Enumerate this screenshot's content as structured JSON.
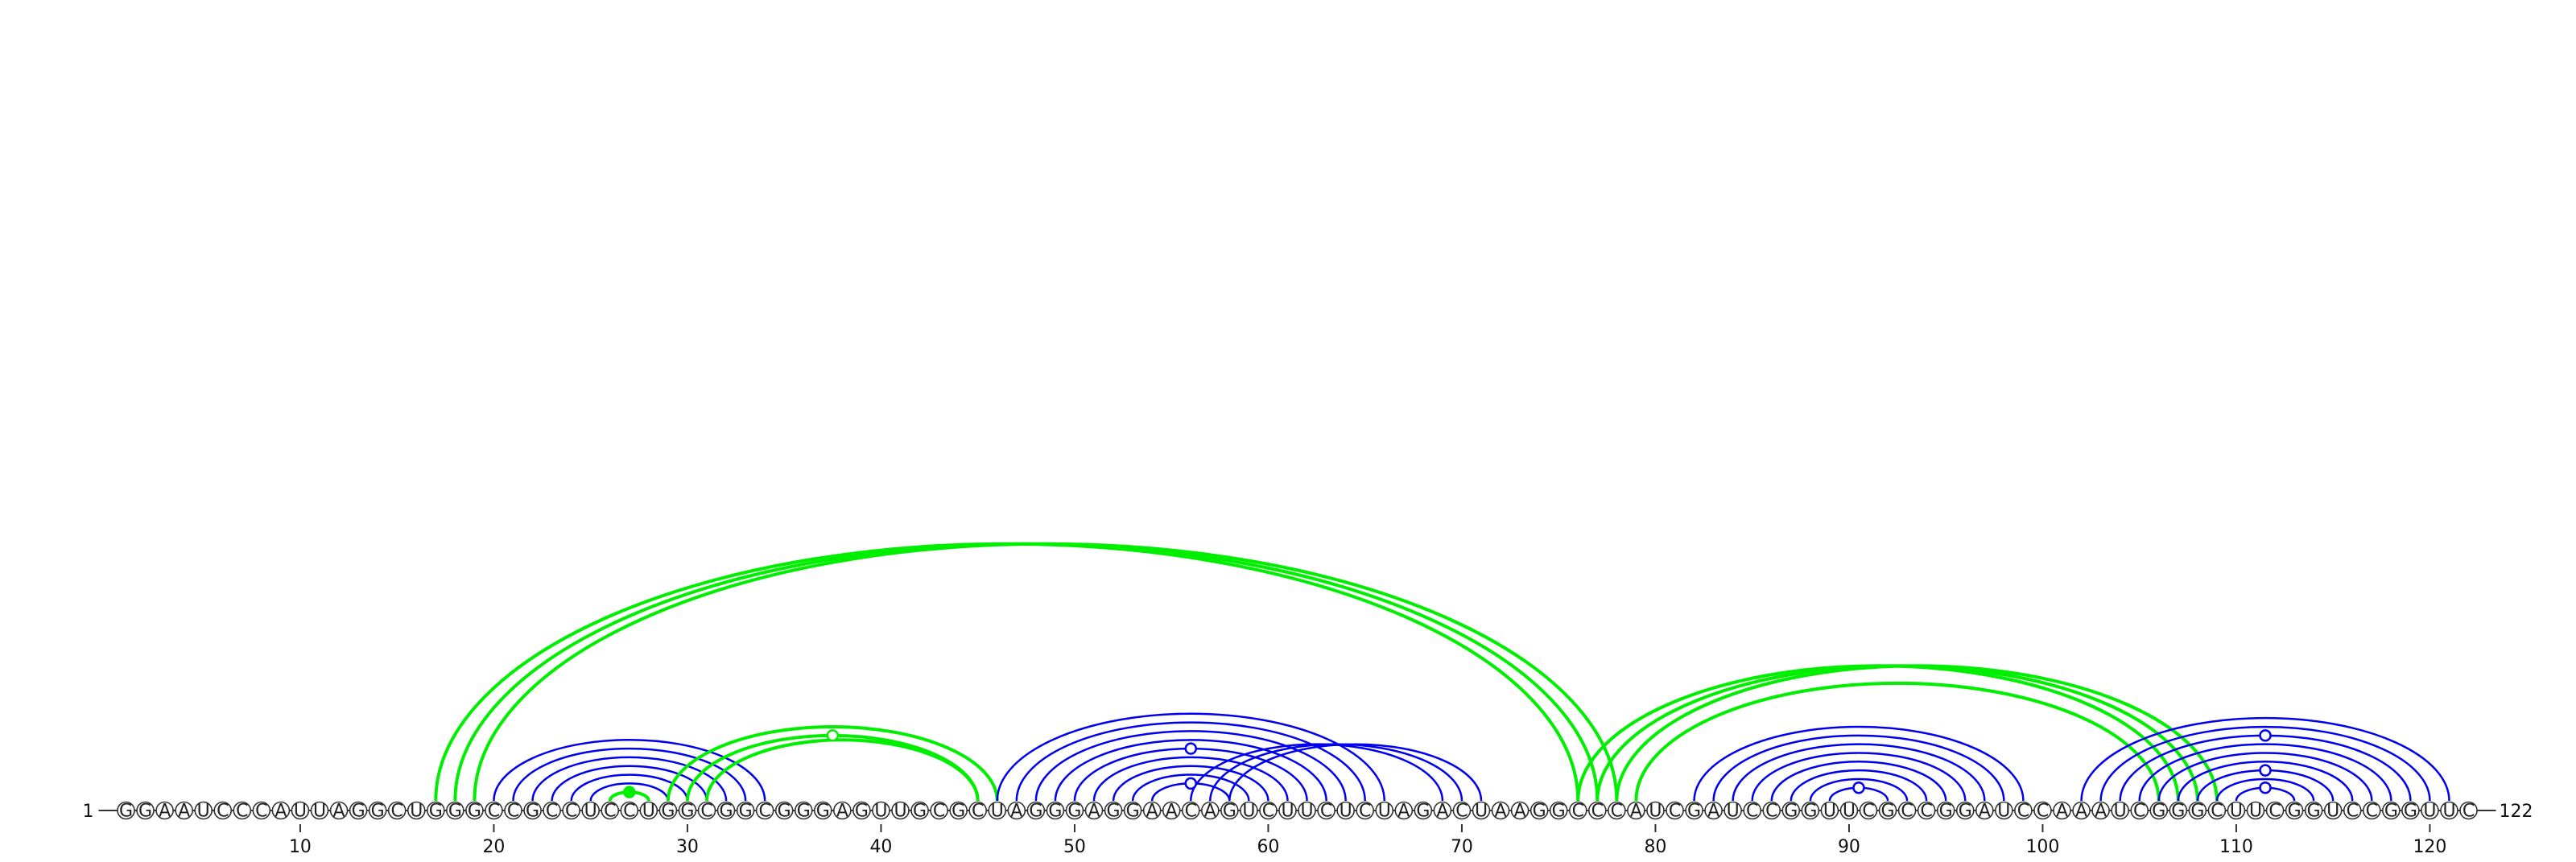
{
  "sequence": "GGAAUCCCAUUAGGCUGGGCCGCCUCCUGGCGGCGGGAGUUGCGCUAGGGAGGAACAGUCUUCUCUAGACUAAGGCCCAUCGAUCCGGUUCGCCGGAUCCAAAUCGGGCUUCGGUCCGGUUC",
  "length": 122,
  "start_label": "1",
  "end_label": "122",
  "tick_positions": [
    10,
    20,
    30,
    40,
    50,
    60,
    70,
    80,
    90,
    100,
    110,
    120
  ],
  "colors": {
    "line": "#333333",
    "nucleotide_stroke": "#333333",
    "nucleotide_fill": "#ffffff",
    "blue": "#0000ee",
    "green": "#00ee00"
  },
  "arcs": [
    {
      "color": "blue",
      "i": 20,
      "j": 34
    },
    {
      "color": "blue",
      "i": 21,
      "j": 33
    },
    {
      "color": "blue",
      "i": 22,
      "j": 32
    },
    {
      "color": "blue",
      "i": 23,
      "j": 31
    },
    {
      "color": "blue",
      "i": 24,
      "j": 30
    },
    {
      "color": "blue",
      "i": 25,
      "j": 29
    },
    {
      "color": "green",
      "i": 17,
      "j": 76
    },
    {
      "color": "green",
      "i": 18,
      "j": 77
    },
    {
      "color": "green",
      "i": 19,
      "j": 78
    },
    {
      "color": "green",
      "i": 30,
      "j": 45
    },
    {
      "color": "green",
      "i": 31,
      "j": 45
    },
    {
      "color": "green",
      "i": 29,
      "j": 46
    },
    {
      "color": "green",
      "i": 26,
      "j": 28
    },
    {
      "color": "blue",
      "i": 46,
      "j": 66
    },
    {
      "color": "blue",
      "i": 47,
      "j": 65
    },
    {
      "color": "blue",
      "i": 48,
      "j": 64
    },
    {
      "color": "blue",
      "i": 49,
      "j": 63
    },
    {
      "color": "blue",
      "i": 50,
      "j": 62
    },
    {
      "color": "blue",
      "i": 51,
      "j": 61
    },
    {
      "color": "blue",
      "i": 52,
      "j": 60
    },
    {
      "color": "blue",
      "i": 53,
      "j": 59
    },
    {
      "color": "blue",
      "i": 54,
      "j": 58
    },
    {
      "color": "blue",
      "i": 56,
      "j": 69
    },
    {
      "color": "blue",
      "i": 57,
      "j": 70
    },
    {
      "color": "blue",
      "i": 58,
      "j": 71
    },
    {
      "color": "green",
      "i": 76,
      "j": 107
    },
    {
      "color": "green",
      "i": 77,
      "j": 108
    },
    {
      "color": "green",
      "i": 78,
      "j": 109
    },
    {
      "color": "green",
      "i": 79,
      "j": 106
    },
    {
      "color": "blue",
      "i": 82,
      "j": 99
    },
    {
      "color": "blue",
      "i": 83,
      "j": 98
    },
    {
      "color": "blue",
      "i": 84,
      "j": 97
    },
    {
      "color": "blue",
      "i": 85,
      "j": 96
    },
    {
      "color": "blue",
      "i": 86,
      "j": 95
    },
    {
      "color": "blue",
      "i": 87,
      "j": 94
    },
    {
      "color": "blue",
      "i": 88,
      "j": 93
    },
    {
      "color": "blue",
      "i": 89,
      "j": 92
    },
    {
      "color": "blue",
      "i": 102,
      "j": 121
    },
    {
      "color": "blue",
      "i": 103,
      "j": 120
    },
    {
      "color": "blue",
      "i": 104,
      "j": 119
    },
    {
      "color": "blue",
      "i": 105,
      "j": 118
    },
    {
      "color": "blue",
      "i": 106,
      "j": 117
    },
    {
      "color": "blue",
      "i": 107,
      "j": 116
    },
    {
      "color": "blue",
      "i": 108,
      "j": 115
    },
    {
      "color": "blue",
      "i": 109,
      "j": 114
    },
    {
      "color": "blue",
      "i": 110,
      "j": 113
    }
  ],
  "markers": [
    {
      "color": "green",
      "fill": true,
      "i": 26,
      "j": 28
    },
    {
      "color": "green",
      "fill": false,
      "i": 30,
      "j": 45
    },
    {
      "color": "blue",
      "fill": false,
      "i": 50,
      "j": 62
    },
    {
      "color": "blue",
      "fill": false,
      "i": 54,
      "j": 58
    },
    {
      "color": "blue",
      "fill": false,
      "i": 89,
      "j": 92
    },
    {
      "color": "blue",
      "fill": false,
      "i": 104,
      "j": 119
    },
    {
      "color": "blue",
      "fill": false,
      "i": 108,
      "j": 115
    },
    {
      "color": "blue",
      "fill": false,
      "i": 110,
      "j": 113
    }
  ]
}
